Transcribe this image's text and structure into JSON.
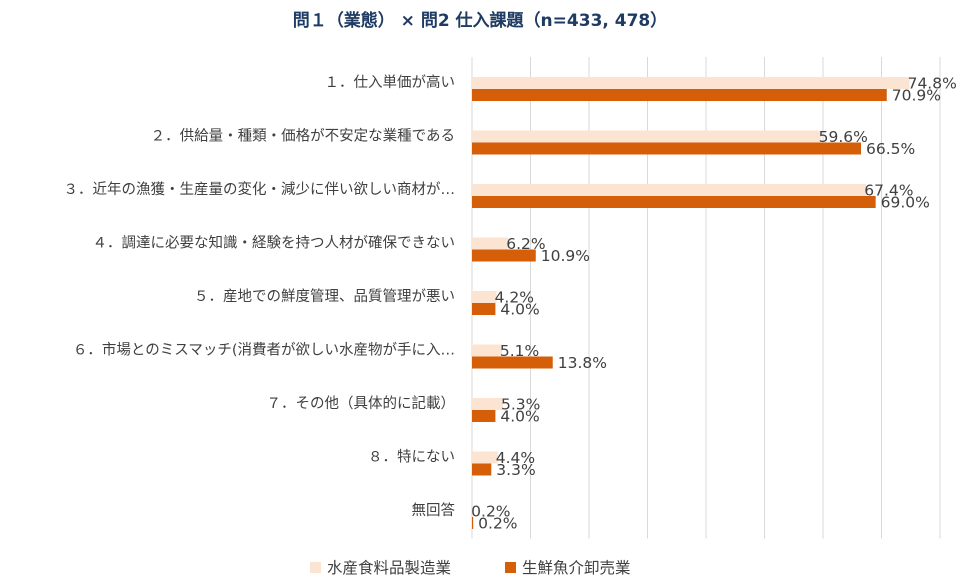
{
  "chart_data": {
    "type": "bar",
    "orientation": "horizontal",
    "title": "問１（業態） × 問2 仕入課題（n=433, 478）",
    "categories": [
      "１．仕入単価が高い",
      "２．供給量・種類・価格が不安定な業種である",
      "３．近年の漁獲・生産量の変化・減少に伴い欲しい商材が…",
      "４．調達に必要な知識・経験を持つ人材が確保できない",
      "５．産地での鮮度管理、品質管理が悪い",
      "６．市場とのミスマッチ(消費者が欲しい水産物が手に入…",
      "７．その他（具体的に記載）",
      "８．特にない",
      "無回答"
    ],
    "series": [
      {
        "name": "水産食料品製造業",
        "color": "#fce4d2",
        "values": [
          74.8,
          59.6,
          67.4,
          6.2,
          4.2,
          5.1,
          5.3,
          4.4,
          0.2
        ],
        "labels": [
          "74.8%",
          "59.6%",
          "67.4%",
          "6.2%",
          "4.2%",
          "5.1%",
          "5.3%",
          "4.4%",
          "0.2%"
        ]
      },
      {
        "name": "生鮮魚介卸売業",
        "color": "#d55e08",
        "values": [
          70.9,
          66.5,
          69.0,
          10.9,
          4.0,
          13.8,
          4.0,
          3.3,
          0.2
        ],
        "labels": [
          "70.9%",
          "66.5%",
          "69.0%",
          "10.9%",
          "4.0%",
          "13.8%",
          "4.0%",
          "3.3%",
          "0.2%"
        ]
      }
    ],
    "xlim": [
      0,
      80
    ],
    "grid": true,
    "legend_position": "bottom"
  }
}
